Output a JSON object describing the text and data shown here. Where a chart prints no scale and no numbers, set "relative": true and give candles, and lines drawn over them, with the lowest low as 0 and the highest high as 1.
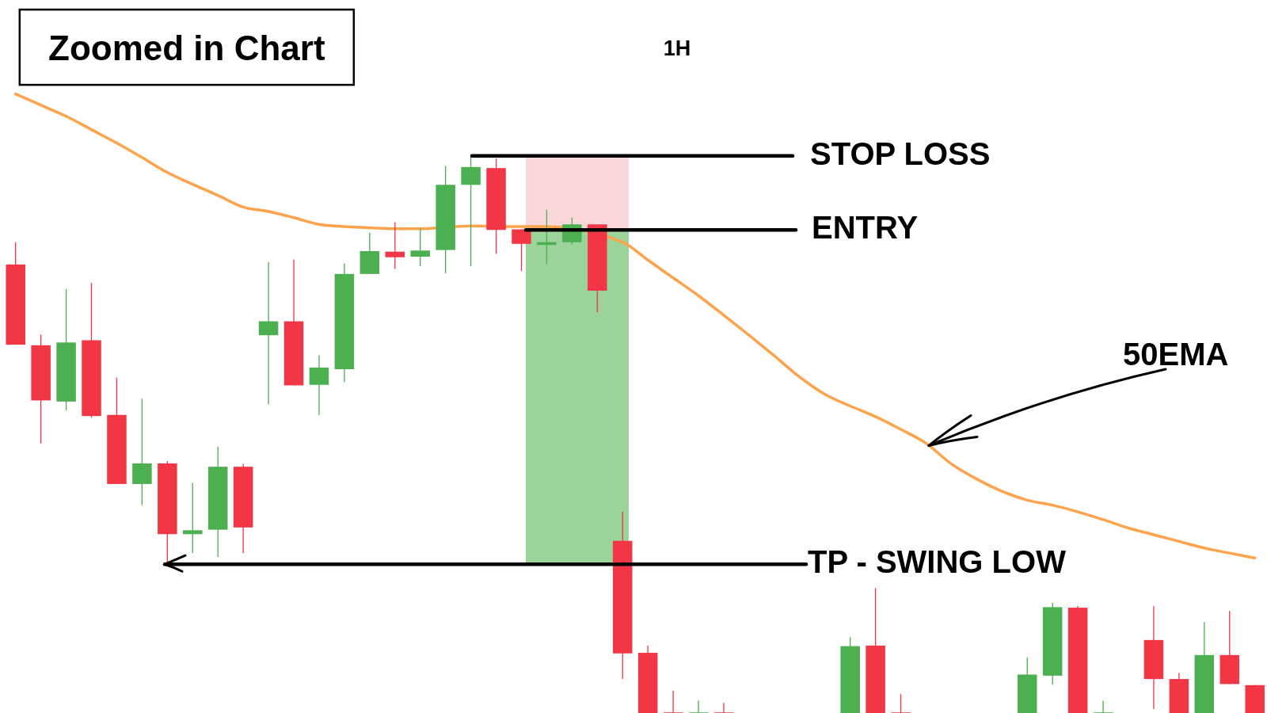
{
  "chart_data": {
    "type": "candlestick",
    "title": "Zoomed in Chart",
    "subtitle": "1H",
    "relative": true,
    "tick_labels": false,
    "categories": [
      null,
      null,
      null,
      null,
      null,
      null,
      null,
      null,
      null,
      null,
      null,
      null,
      null,
      null,
      null,
      null,
      null,
      null,
      null,
      null,
      null,
      null,
      null,
      null,
      null,
      null,
      null,
      null,
      null,
      null,
      null,
      null,
      null,
      null,
      null,
      null,
      null,
      null,
      null,
      null,
      null,
      null,
      null,
      null,
      null,
      null,
      null,
      null,
      null,
      null
    ],
    "ohlc": [
      [
        0.805,
        0.845,
        0.661,
        0.661
      ],
      [
        0.66,
        0.679,
        0.484,
        0.561
      ],
      [
        0.559,
        0.761,
        0.543,
        0.665
      ],
      [
        0.669,
        0.772,
        0.53,
        0.533
      ],
      [
        0.535,
        0.602,
        0.411,
        0.411
      ],
      [
        0.411,
        0.564,
        0.373,
        0.448
      ],
      [
        0.448,
        0.452,
        0.27,
        0.321
      ],
      [
        0.321,
        0.413,
        0.287,
        0.328
      ],
      [
        0.329,
        0.478,
        0.28,
        0.442
      ],
      [
        0.442,
        0.447,
        0.287,
        0.333
      ],
      [
        0.678,
        0.809,
        0.554,
        0.703
      ],
      [
        0.703,
        0.814,
        0.588,
        0.588
      ],
      [
        0.589,
        0.642,
        0.535,
        0.62
      ],
      [
        0.617,
        0.807,
        0.594,
        0.788
      ],
      [
        0.788,
        0.862,
        0.788,
        0.829
      ],
      [
        0.828,
        0.881,
        0.797,
        0.818
      ],
      [
        0.819,
        0.87,
        0.802,
        0.83
      ],
      [
        0.831,
        0.982,
        0.789,
        0.948
      ],
      [
        0.948,
        1.0,
        0.802,
        0.98
      ],
      [
        0.978,
        0.995,
        0.824,
        0.867
      ],
      [
        0.868,
        0.868,
        0.793,
        0.842
      ],
      [
        0.84,
        0.903,
        0.805,
        0.845
      ],
      [
        0.845,
        0.889,
        0.841,
        0.877
      ],
      [
        0.877,
        0.877,
        0.719,
        0.758
      ],
      [
        0.309,
        0.361,
        0.061,
        0.107
      ],
      [
        0.108,
        0.121,
        0,
        0
      ],
      [
        0,
        0.04,
        0,
        0
      ],
      [
        0,
        0.022,
        0,
        0
      ],
      [
        0,
        0.018,
        0,
        0
      ],
      null,
      null,
      null,
      null,
      [
        0,
        0.136,
        0,
        0.12
      ],
      [
        0.121,
        0.224,
        0,
        0
      ],
      [
        0,
        0.034,
        0,
        0
      ],
      null,
      null,
      null,
      null,
      [
        0,
        0.1,
        0,
        0.069
      ],
      [
        0.067,
        0.198,
        0.051,
        0.19
      ],
      [
        0.189,
        0.192,
        0,
        0
      ],
      [
        0,
        0.022,
        0,
        0
      ],
      null,
      [
        0.131,
        0.192,
        0.007,
        0.061
      ],
      [
        0.061,
        0.072,
        0,
        0
      ],
      [
        0,
        0.163,
        0,
        0.104
      ],
      [
        0.104,
        0.183,
        0.052,
        0.052
      ],
      [
        0.05,
        0.05,
        0,
        0
      ]
    ],
    "colors": [
      "#f23645",
      "#f23645",
      "#4caf50",
      "#f23645",
      "#f23645",
      "#4caf50",
      "#f23645",
      "#4caf50",
      "#4caf50",
      "#f23645",
      "#4caf50",
      "#f23645",
      "#4caf50",
      "#4caf50",
      "#4caf50",
      "#f23645",
      "#4caf50",
      "#4caf50",
      "#4caf50",
      "#f23645",
      "#f23645",
      "#4caf50",
      "#4caf50",
      "#f23645",
      "#f23645",
      "#f23645",
      "#f23645",
      "#4caf50",
      "#f23645",
      null,
      null,
      null,
      null,
      "#4caf50",
      "#f23645",
      "#f23645",
      null,
      null,
      null,
      null,
      "#4caf50",
      "#4caf50",
      "#f23645",
      "#4caf50",
      null,
      "#f23645",
      "#f23645",
      "#4caf50",
      "#f23645",
      "#f23645"
    ],
    "series": [
      {
        "type": "line",
        "color": "#fda34b",
        "values": [
          1.111,
          1.091,
          1.071,
          1.047,
          1.023,
          0.997,
          0.97,
          0.949,
          0.929,
          0.908,
          0.9,
          0.889,
          0.877,
          0.873,
          0.871,
          0.869,
          0.869,
          null,
          0.874,
          null,
          0.873,
          0.873,
          null,
          null,
          0.845,
          0.813,
          0.781,
          0.749,
          0.714,
          0.678,
          0.641,
          0.603,
          0.572,
          0.551,
          0.532,
          0.509,
          0.484,
          0.447,
          0.42,
          0.398,
          0.382,
          0.373,
          0.361,
          0.347,
          0.332,
          0.32,
          0.308,
          0.296,
          0.287,
          0.278
        ]
      }
    ],
    "annotations": [
      "50EMA"
    ],
    "ref_lines": [
      {
        "axis": "y",
        "value": 1.0,
        "label": "STOP LOSS",
        "color": "#000000"
      },
      {
        "axis": "y",
        "value": 0.867,
        "label": "ENTRY",
        "color": "#000000"
      },
      {
        "axis": "y",
        "value": 0.267,
        "label": "TP - SWING LOW",
        "color": "#000000"
      }
    ],
    "bands": [
      {
        "axis": "y",
        "from": 0.867,
        "to": 1.0,
        "color": "#fad7da"
      },
      {
        "axis": "y",
        "from": 0.267,
        "to": 0.867,
        "color": "#9cd39b"
      }
    ]
  }
}
